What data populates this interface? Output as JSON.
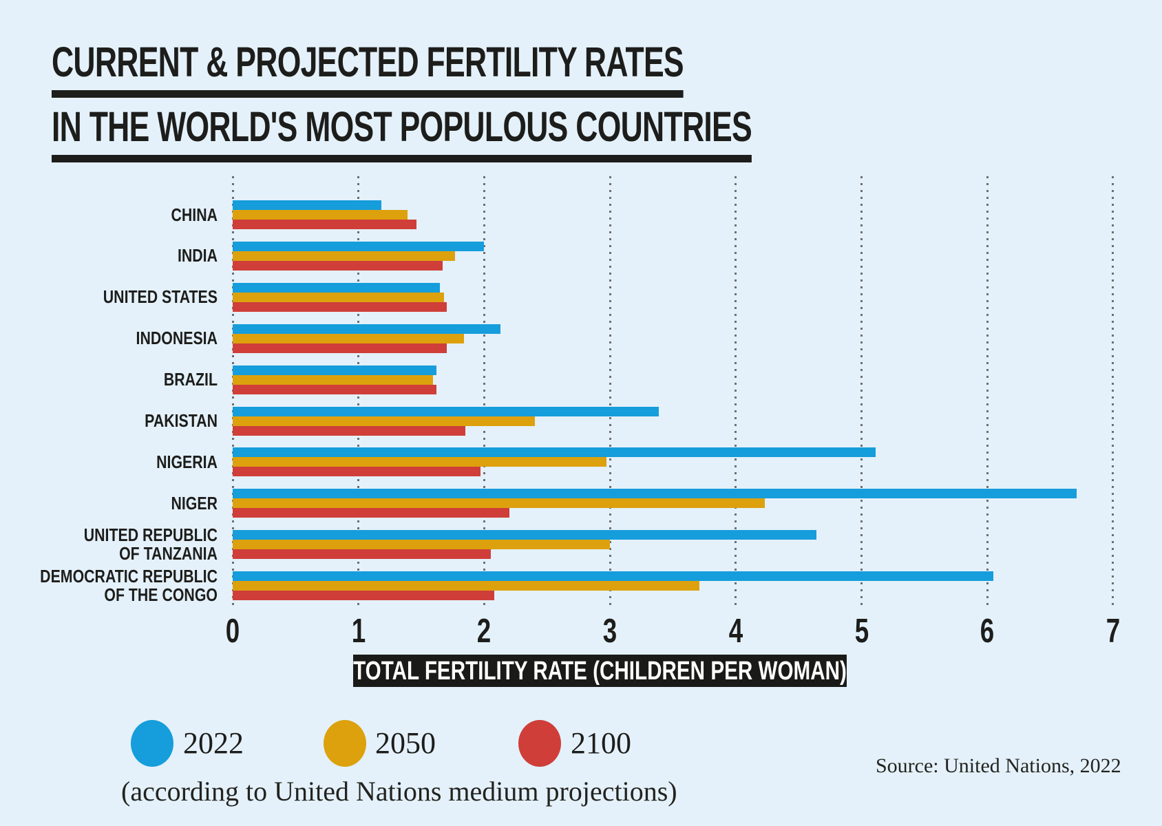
{
  "title": {
    "line1": "CURRENT & PROJECTED FERTILITY RATES",
    "line2": "IN THE WORLD'S MOST POPULOUS COUNTRIES"
  },
  "chart_data": {
    "type": "bar",
    "orientation": "horizontal",
    "categories": [
      "CHINA",
      "INDIA",
      "UNITED STATES",
      "INDONESIA",
      "BRAZIL",
      "PAKISTAN",
      "NIGERIA",
      "NIGER",
      "UNITED REPUBLIC OF TANZANIA",
      "DEMOCRATIC REPUBLIC OF THE CONGO"
    ],
    "wrapped_labels": [
      "CHINA",
      "INDIA",
      "UNITED STATES",
      "INDONESIA",
      "BRAZIL",
      "PAKISTAN",
      "NIGERIA",
      "NIGER",
      "UNITED REPUBLIC\nOF TANZANIA",
      "DEMOCRATIC REPUBLIC\nOF THE CONGO"
    ],
    "series": [
      {
        "name": "2022",
        "color": "#169ddb",
        "values": [
          1.18,
          2.0,
          1.65,
          2.13,
          1.62,
          3.39,
          5.11,
          6.71,
          4.64,
          6.05
        ]
      },
      {
        "name": "2050",
        "color": "#dda10d",
        "values": [
          1.39,
          1.77,
          1.68,
          1.84,
          1.59,
          2.4,
          2.97,
          4.23,
          3.0,
          3.71
        ]
      },
      {
        "name": "2100",
        "color": "#cf3e39",
        "values": [
          1.46,
          1.67,
          1.7,
          1.7,
          1.62,
          1.85,
          1.97,
          2.2,
          2.05,
          2.08
        ]
      }
    ],
    "xlabel": "TOTAL FERTILITY RATE (CHILDREN PER WOMAN)",
    "xlim": [
      0,
      7
    ],
    "xticks": [
      0,
      1,
      2,
      3,
      4,
      5,
      6,
      7
    ],
    "grid": "dotted-vertical",
    "legend_position": "bottom-left",
    "legend_note": "(according to United Nations medium projections)"
  },
  "source": "Source: United Nations, 2022",
  "colors": {
    "background": "#e4f1fa",
    "text": "#1d1d1b",
    "axis_box_background": "#1a1a18",
    "axis_box_text": "#ffffff",
    "gridline": "#6e6e6e",
    "series_2022": "#169ddb",
    "series_2050": "#dda10d",
    "series_2100": "#cf3e39"
  }
}
